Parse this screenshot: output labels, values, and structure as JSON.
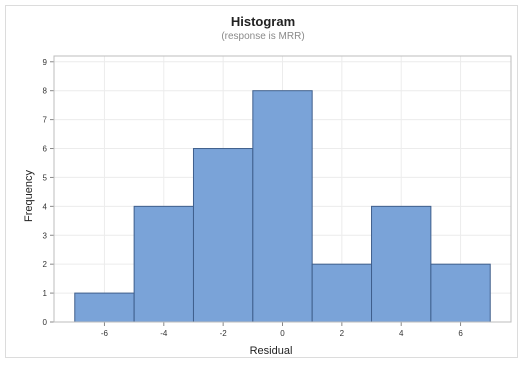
{
  "chart_data": {
    "type": "bar",
    "title": "Histogram",
    "subtitle": "(response is MRR)",
    "xlabel": "Residual",
    "ylabel": "Frequency",
    "bins": [
      {
        "x0": -7,
        "x1": -5,
        "count": 1
      },
      {
        "x0": -5,
        "x1": -3,
        "count": 4
      },
      {
        "x0": -3,
        "x1": -1,
        "count": 6
      },
      {
        "x0": -1,
        "x1": 1,
        "count": 8
      },
      {
        "x0": 1,
        "x1": 3,
        "count": 2
      },
      {
        "x0": 3,
        "x1": 5,
        "count": 4
      },
      {
        "x0": 5,
        "x1": 7,
        "count": 2
      }
    ],
    "xticks": [
      -6,
      -4,
      -2,
      0,
      2,
      4,
      6
    ],
    "yticks": [
      0,
      1,
      2,
      3,
      4,
      5,
      6,
      7,
      8,
      9
    ],
    "xlim": [
      -7.7,
      7.7
    ],
    "ylim": [
      0,
      9.2
    ],
    "grid": true,
    "bar_color": "#7aa3d8",
    "bar_edge_color": "#3f5f8c"
  }
}
